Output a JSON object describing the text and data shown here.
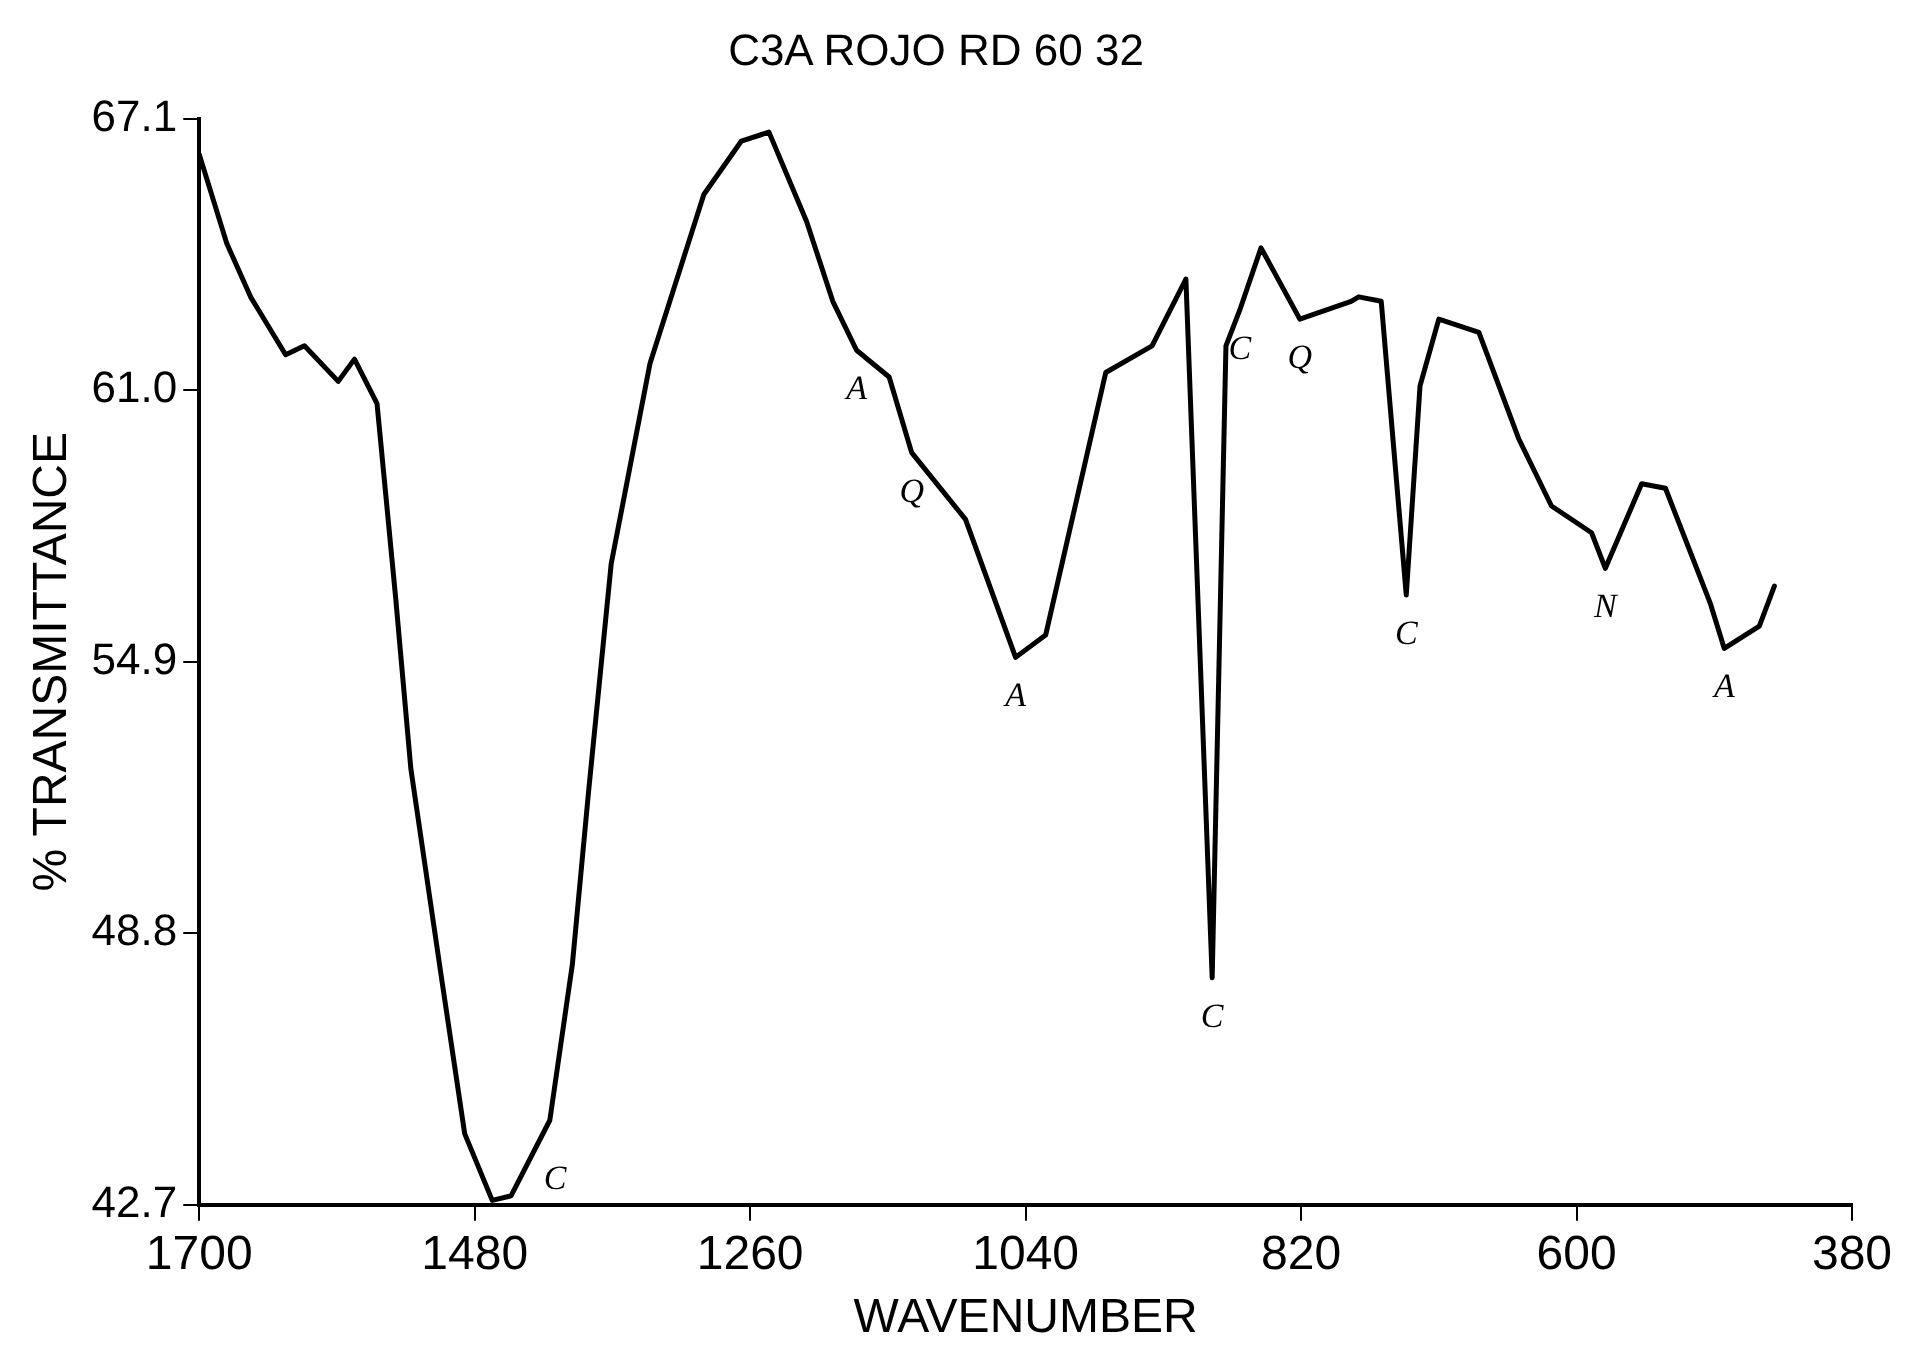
{
  "chart_data": {
    "type": "line",
    "title": "C3A ROJO RD 60 32",
    "xlabel": "WAVENUMBER",
    "ylabel": "% TRANSMITTANCE",
    "x": [
      1700,
      1678,
      1659,
      1631,
      1616,
      1589,
      1576,
      1558,
      1543,
      1531,
      1506,
      1488,
      1466,
      1451,
      1420,
      1402,
      1389,
      1371,
      1340,
      1297,
      1267,
      1245,
      1215,
      1194,
      1175,
      1149,
      1131,
      1088,
      1048,
      1024,
      976,
      939,
      912,
      891,
      880,
      869,
      852,
      821,
      780,
      774,
      756,
      736,
      725,
      710,
      678,
      646,
      620,
      588,
      577,
      548,
      529,
      493,
      482,
      454,
      442
    ],
    "series": [
      {
        "color": "#000000",
        "values": [
          66.3,
          64.3,
          63.1,
          61.8,
          62.0,
          61.2,
          61.7,
          60.7,
          56.3,
          52.5,
          47.7,
          44.3,
          42.8,
          42.9,
          44.6,
          48.1,
          52.0,
          57.1,
          61.6,
          65.4,
          66.6,
          66.8,
          64.8,
          63.0,
          61.9,
          61.3,
          59.6,
          58.1,
          55.0,
          55.5,
          61.4,
          62.0,
          63.5,
          47.8,
          62.0,
          62.8,
          64.2,
          62.6,
          63.0,
          63.1,
          63.0,
          56.4,
          61.1,
          62.6,
          62.3,
          59.9,
          58.4,
          57.8,
          57.0,
          58.9,
          58.8,
          56.2,
          55.2,
          55.7,
          56.6
        ]
      }
    ],
    "xlim": [
      1700,
      380
    ],
    "xticks": [
      1700,
      1480,
      1260,
      1040,
      820,
      600,
      380
    ],
    "ylim": [
      42.7,
      67.1
    ],
    "yticks": [
      42.7,
      48.8,
      54.9,
      {
        "value": 61,
        "label": "61.0"
      },
      67.1
    ],
    "grid": false,
    "legend": false,
    "marker": "none",
    "line_style": "solid",
    "annotations": [
      {
        "text": "C",
        "x": 1451,
        "y": 42.9
      },
      {
        "text": "A",
        "x": 1175,
        "y": 61.9
      },
      {
        "text": "Q",
        "x": 1131,
        "y": 59.6
      },
      {
        "text": "A",
        "x": 1048,
        "y": 55.0
      },
      {
        "text": "C",
        "x": 891,
        "y": 47.8
      },
      {
        "text": "C",
        "x": 869,
        "y": 62.8
      },
      {
        "text": "Q",
        "x": 821,
        "y": 62.6
      },
      {
        "text": "C",
        "x": 736,
        "y": 56.4
      },
      {
        "text": "N",
        "x": 577,
        "y": 57.0
      },
      {
        "text": "A",
        "x": 482,
        "y": 55.2
      }
    ]
  }
}
